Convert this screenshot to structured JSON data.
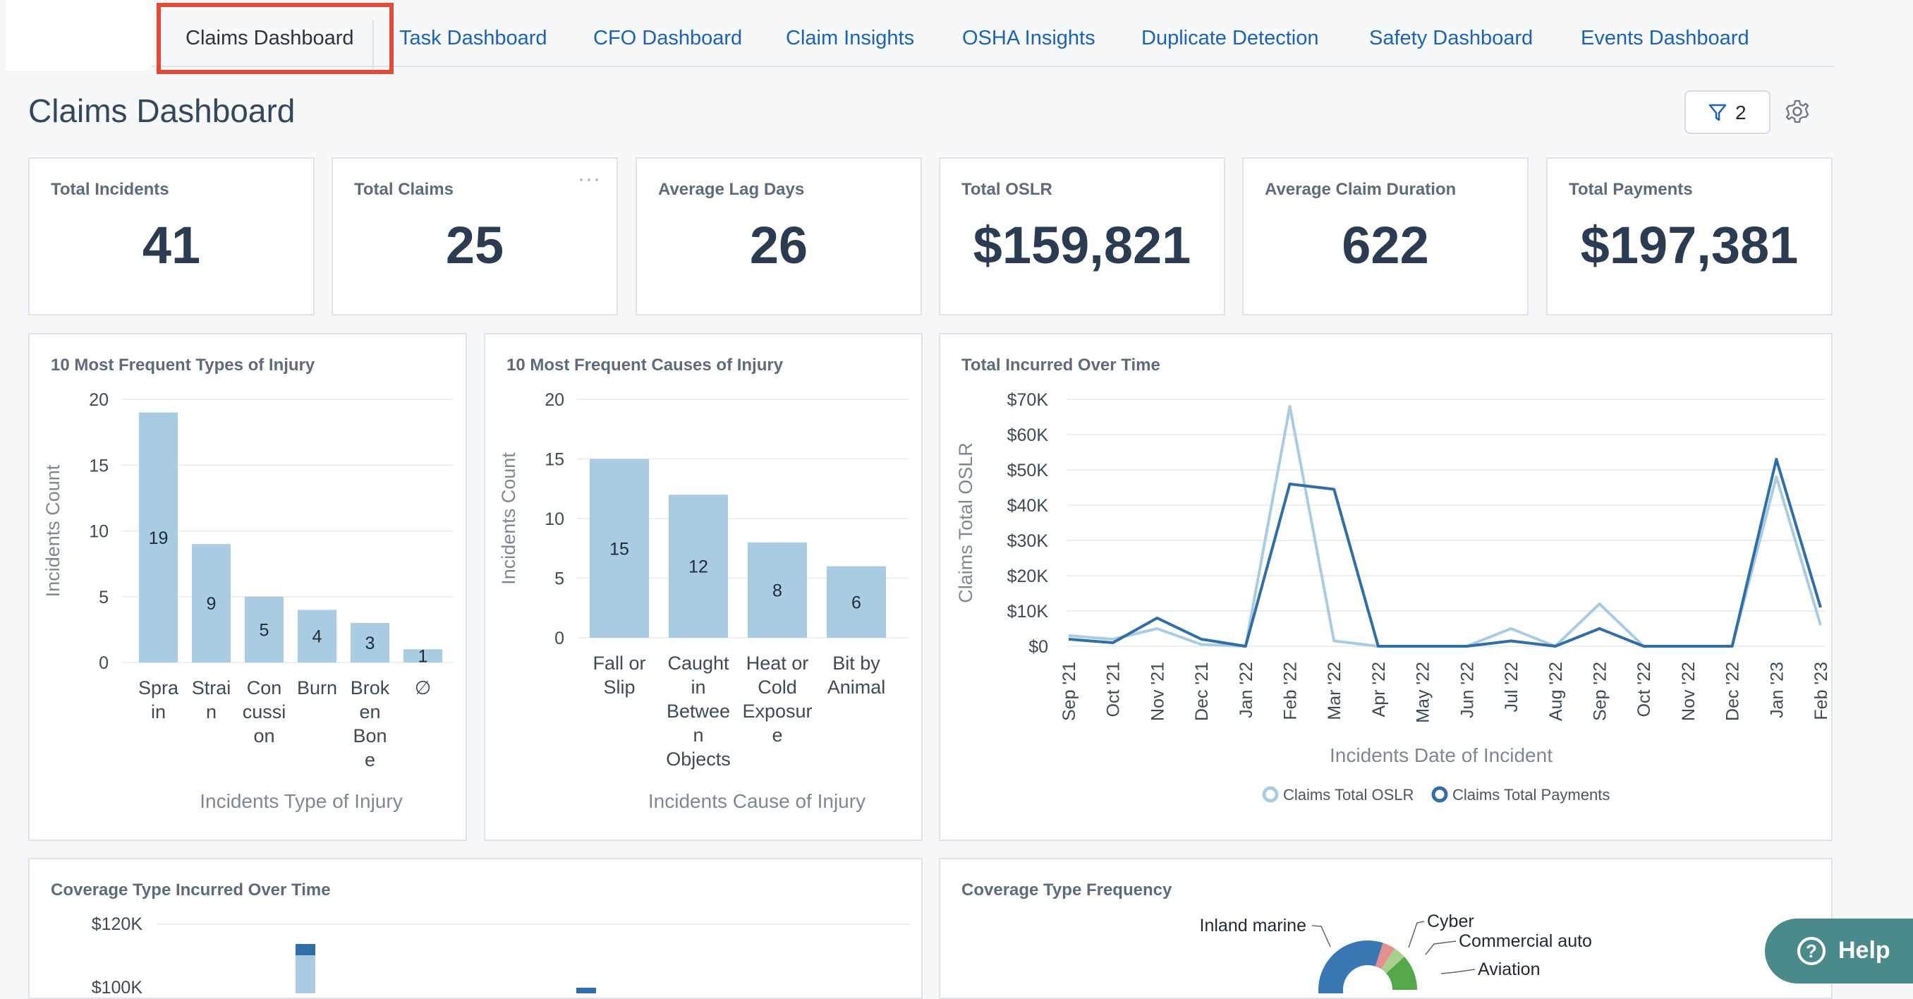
{
  "tabs": [
    {
      "label": "Claims Dashboard",
      "active": true
    },
    {
      "label": "Task Dashboard"
    },
    {
      "label": "CFO Dashboard"
    },
    {
      "label": "Claim Insights"
    },
    {
      "label": "OSHA Insights"
    },
    {
      "label": "Duplicate Detection"
    },
    {
      "label": "Safety Dashboard"
    },
    {
      "label": "Events Dashboard"
    }
  ],
  "header": {
    "title": "Claims Dashboard",
    "filter_count": "2"
  },
  "kpis": [
    {
      "label": "Total Incidents",
      "value": "41"
    },
    {
      "label": "Total Claims",
      "value": "25"
    },
    {
      "label": "Average Lag Days",
      "value": "26"
    },
    {
      "label": "Total OSLR",
      "value": "$159,821"
    },
    {
      "label": "Average Claim Duration",
      "value": "622"
    },
    {
      "label": "Total Payments",
      "value": "$197,381"
    }
  ],
  "kpi_menu": "···",
  "chart_data": [
    {
      "type": "bar",
      "title": "10 Most Frequent Types of Injury",
      "xlabel": "Incidents Type of Injury",
      "ylabel": "Incidents Count",
      "ylim": [
        0,
        20
      ],
      "yticks": [
        "0",
        "5",
        "10",
        "15",
        "20"
      ],
      "categories": [
        [
          "Spra",
          "in"
        ],
        [
          "Strai",
          "n"
        ],
        [
          "Con",
          "cussi",
          "on"
        ],
        [
          "Burn"
        ],
        [
          "Brok",
          "en",
          "Bon",
          "e"
        ],
        [
          "∅"
        ]
      ],
      "values": [
        19,
        9,
        5,
        4,
        3,
        1
      ],
      "color": "#a9cce3"
    },
    {
      "type": "bar",
      "title": "10 Most Frequent Causes of Injury",
      "xlabel": "Incidents Cause of Injury",
      "ylabel": "Incidents Count",
      "ylim": [
        0,
        20
      ],
      "yticks": [
        "0",
        "5",
        "10",
        "15",
        "20"
      ],
      "categories": [
        [
          "Fall or",
          "Slip"
        ],
        [
          "Caught",
          "in",
          "Betwee",
          "n",
          "Objects"
        ],
        [
          "Heat or",
          "Cold",
          "Exposur",
          "e"
        ],
        [
          "Bit by",
          "Animal"
        ]
      ],
      "values": [
        15,
        12,
        8,
        6
      ],
      "color": "#a9cce3"
    },
    {
      "type": "line",
      "title": "Total Incurred Over Time",
      "xlabel": "Incidents Date of Incident",
      "ylabel": "Claims Total OSLR",
      "ylim": [
        0,
        70000
      ],
      "yticks": [
        "$0",
        "$10K",
        "$20K",
        "$30K",
        "$40K",
        "$50K",
        "$60K",
        "$70K"
      ],
      "x": [
        "Sep '21",
        "Oct '21",
        "Nov '21",
        "Dec '21",
        "Jan '22",
        "Feb '22",
        "Mar '22",
        "Apr '22",
        "May '22",
        "Jun '22",
        "Jul '22",
        "Aug '22",
        "Sep '22",
        "Oct '22",
        "Nov '22",
        "Dec '22",
        "Jan '23",
        "Feb '23"
      ],
      "series": [
        {
          "name": "Claims Total OSLR",
          "color": "#a9cce3",
          "values": [
            3000,
            2000,
            5000,
            500,
            0,
            68000,
            1500,
            0,
            0,
            0,
            5000,
            0,
            12000,
            0,
            0,
            0,
            48000,
            6000
          ]
        },
        {
          "name": "Claims Total Payments",
          "color": "#2f6ea9",
          "values": [
            2000,
            1000,
            8000,
            2000,
            0,
            46000,
            44500,
            0,
            0,
            0,
            1500,
            0,
            5000,
            0,
            0,
            0,
            53000,
            11000
          ]
        }
      ]
    },
    {
      "type": "bar",
      "title": "Coverage Type Incurred Over Time",
      "yticks_visible": [
        "$120K",
        "$100K"
      ],
      "ylim": [
        0,
        120000
      ]
    },
    {
      "type": "pie",
      "title": "Coverage Type Frequency",
      "labels": [
        "Inland marine",
        "Cyber",
        "Commercial auto",
        "Aviation"
      ],
      "colors": [
        "#3a78b5",
        "#e59090",
        "#a8d08d",
        "#55a84a"
      ]
    }
  ],
  "help": {
    "label": "Help",
    "icon": "?"
  }
}
